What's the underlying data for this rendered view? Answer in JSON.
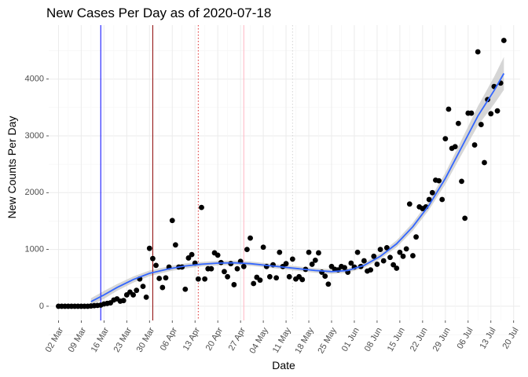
{
  "chart_data": {
    "type": "scatter",
    "title": "New Cases Per Day as of 2020-07-18",
    "xlabel": "Date",
    "ylabel": "New Counts Per Day",
    "xlim": [
      "2020-02-28",
      "2020-07-22"
    ],
    "ylim": [
      -250,
      4950
    ],
    "x_ticks": [
      "2020-03-02",
      "2020-03-09",
      "2020-03-16",
      "2020-03-23",
      "2020-03-30",
      "2020-04-06",
      "2020-04-13",
      "2020-04-20",
      "2020-04-27",
      "2020-05-04",
      "2020-05-11",
      "2020-05-18",
      "2020-05-25",
      "2020-06-01",
      "2020-06-08",
      "2020-06-15",
      "2020-06-22",
      "2020-06-29",
      "2020-07-06",
      "2020-07-13",
      "2020-07-20"
    ],
    "x_tick_labels": [
      "02 Mar",
      "09 Mar",
      "16 Mar",
      "23 Mar",
      "30 Mar",
      "06 Apr",
      "13 Apr",
      "20 Apr",
      "27 Apr",
      "04 May",
      "11 May",
      "18 May",
      "25 May",
      "01 Jun",
      "08 Jun",
      "15 Jun",
      "22 Jun",
      "29 Jun",
      "06 Jul",
      "13 Jul",
      "20 Jul"
    ],
    "y_ticks": [
      0,
      1000,
      2000,
      3000,
      4000
    ],
    "y_tick_labels": [
      "0",
      "1000",
      "2000",
      "3000",
      "4000"
    ],
    "grid": true,
    "legend": "none",
    "colors": {
      "points": "#000000",
      "smooth": "#3366ff",
      "ribbon": "#c8c8c8"
    },
    "vlines": [
      {
        "x": "2020-03-15",
        "color": "#0000ff",
        "style": "solid"
      },
      {
        "x": "2020-03-31",
        "color": "#8b0000",
        "style": "solid"
      },
      {
        "x": "2020-04-14",
        "color": "#e03030",
        "style": "dotted"
      },
      {
        "x": "2020-04-28",
        "color": "#ffb6c1",
        "style": "solid"
      },
      {
        "x": "2020-05-13",
        "color": "#d3d3d3",
        "style": "dotted"
      }
    ],
    "series": [
      {
        "values": [
          [
            "2020-03-02",
            0
          ],
          [
            "2020-03-03",
            0
          ],
          [
            "2020-03-04",
            0
          ],
          [
            "2020-03-05",
            0
          ],
          [
            "2020-03-06",
            0
          ],
          [
            "2020-03-07",
            0
          ],
          [
            "2020-03-08",
            0
          ],
          [
            "2020-03-09",
            0
          ],
          [
            "2020-03-10",
            0
          ],
          [
            "2020-03-11",
            0
          ],
          [
            "2020-03-12",
            5
          ],
          [
            "2020-03-13",
            10
          ],
          [
            "2020-03-14",
            15
          ],
          [
            "2020-03-15",
            20
          ],
          [
            "2020-03-16",
            40
          ],
          [
            "2020-03-17",
            50
          ],
          [
            "2020-03-18",
            60
          ],
          [
            "2020-03-19",
            110
          ],
          [
            "2020-03-20",
            130
          ],
          [
            "2020-03-21",
            90
          ],
          [
            "2020-03-22",
            100
          ],
          [
            "2020-03-23",
            200
          ],
          [
            "2020-03-24",
            250
          ],
          [
            "2020-03-25",
            200
          ],
          [
            "2020-03-26",
            280
          ],
          [
            "2020-03-27",
            480
          ],
          [
            "2020-03-28",
            350
          ],
          [
            "2020-03-29",
            160
          ],
          [
            "2020-03-30",
            1020
          ],
          [
            "2020-03-31",
            840
          ],
          [
            "2020-04-01",
            720
          ],
          [
            "2020-04-02",
            490
          ],
          [
            "2020-04-03",
            330
          ],
          [
            "2020-04-04",
            500
          ],
          [
            "2020-04-05",
            690
          ],
          [
            "2020-04-06",
            1510
          ],
          [
            "2020-04-07",
            1080
          ],
          [
            "2020-04-08",
            690
          ],
          [
            "2020-04-09",
            690
          ],
          [
            "2020-04-10",
            300
          ],
          [
            "2020-04-11",
            850
          ],
          [
            "2020-04-12",
            910
          ],
          [
            "2020-04-13",
            760
          ],
          [
            "2020-04-14",
            480
          ],
          [
            "2020-04-15",
            1740
          ],
          [
            "2020-04-16",
            480
          ],
          [
            "2020-04-17",
            660
          ],
          [
            "2020-04-18",
            660
          ],
          [
            "2020-04-19",
            940
          ],
          [
            "2020-04-20",
            900
          ],
          [
            "2020-04-21",
            770
          ],
          [
            "2020-04-22",
            610
          ],
          [
            "2020-04-23",
            520
          ],
          [
            "2020-04-24",
            750
          ],
          [
            "2020-04-25",
            380
          ],
          [
            "2020-04-26",
            660
          ],
          [
            "2020-04-27",
            790
          ],
          [
            "2020-04-28",
            700
          ],
          [
            "2020-04-29",
            1000
          ],
          [
            "2020-04-30",
            1200
          ],
          [
            "2020-05-01",
            400
          ],
          [
            "2020-05-02",
            510
          ],
          [
            "2020-05-03",
            460
          ],
          [
            "2020-05-04",
            1040
          ],
          [
            "2020-05-05",
            700
          ],
          [
            "2020-05-06",
            520
          ],
          [
            "2020-05-07",
            730
          ],
          [
            "2020-05-08",
            500
          ],
          [
            "2020-05-09",
            950
          ],
          [
            "2020-05-10",
            700
          ],
          [
            "2020-05-11",
            750
          ],
          [
            "2020-05-12",
            520
          ],
          [
            "2020-05-13",
            830
          ],
          [
            "2020-05-14",
            480
          ],
          [
            "2020-05-15",
            520
          ],
          [
            "2020-05-16",
            470
          ],
          [
            "2020-05-17",
            650
          ],
          [
            "2020-05-18",
            950
          ],
          [
            "2020-05-19",
            740
          ],
          [
            "2020-05-20",
            810
          ],
          [
            "2020-05-21",
            940
          ],
          [
            "2020-05-22",
            600
          ],
          [
            "2020-05-23",
            530
          ],
          [
            "2020-05-24",
            390
          ],
          [
            "2020-05-25",
            700
          ],
          [
            "2020-05-26",
            650
          ],
          [
            "2020-05-27",
            640
          ],
          [
            "2020-05-28",
            700
          ],
          [
            "2020-05-29",
            680
          ],
          [
            "2020-05-30",
            600
          ],
          [
            "2020-05-31",
            760
          ],
          [
            "2020-06-01",
            690
          ],
          [
            "2020-06-02",
            950
          ],
          [
            "2020-06-03",
            700
          ],
          [
            "2020-06-04",
            800
          ],
          [
            "2020-06-05",
            620
          ],
          [
            "2020-06-06",
            640
          ],
          [
            "2020-06-07",
            880
          ],
          [
            "2020-06-08",
            740
          ],
          [
            "2020-06-09",
            1000
          ],
          [
            "2020-06-10",
            800
          ],
          [
            "2020-06-11",
            1030
          ],
          [
            "2020-06-12",
            860
          ],
          [
            "2020-06-13",
            730
          ],
          [
            "2020-06-14",
            670
          ],
          [
            "2020-06-15",
            950
          ],
          [
            "2020-06-16",
            880
          ],
          [
            "2020-06-17",
            1010
          ],
          [
            "2020-06-18",
            1800
          ],
          [
            "2020-06-19",
            890
          ],
          [
            "2020-06-20",
            1220
          ],
          [
            "2020-06-21",
            1750
          ],
          [
            "2020-06-22",
            1720
          ],
          [
            "2020-06-23",
            1750
          ],
          [
            "2020-06-24",
            1880
          ],
          [
            "2020-06-25",
            2000
          ],
          [
            "2020-06-26",
            2220
          ],
          [
            "2020-06-27",
            2210
          ],
          [
            "2020-06-28",
            1880
          ],
          [
            "2020-06-29",
            2950
          ],
          [
            "2020-06-30",
            3470
          ],
          [
            "2020-07-01",
            2780
          ],
          [
            "2020-07-02",
            2810
          ],
          [
            "2020-07-03",
            3220
          ],
          [
            "2020-07-04",
            2200
          ],
          [
            "2020-07-05",
            1550
          ],
          [
            "2020-07-06",
            3400
          ],
          [
            "2020-07-07",
            3400
          ],
          [
            "2020-07-08",
            2840
          ],
          [
            "2020-07-09",
            4480
          ],
          [
            "2020-07-10",
            3200
          ],
          [
            "2020-07-11",
            2530
          ],
          [
            "2020-07-12",
            3640
          ],
          [
            "2020-07-13",
            3390
          ],
          [
            "2020-07-14",
            3870
          ],
          [
            "2020-07-15",
            3440
          ],
          [
            "2020-07-16",
            3930
          ],
          [
            "2020-07-17",
            4680
          ]
        ]
      }
    ],
    "smooth": [
      [
        "2020-03-12",
        80,
        20,
        140
      ],
      [
        "2020-03-16",
        200,
        130,
        270
      ],
      [
        "2020-03-20",
        330,
        270,
        390
      ],
      [
        "2020-03-25",
        470,
        415,
        525
      ],
      [
        "2020-03-30",
        580,
        530,
        630
      ],
      [
        "2020-04-05",
        660,
        615,
        705
      ],
      [
        "2020-04-10",
        710,
        665,
        755
      ],
      [
        "2020-04-15",
        740,
        700,
        780
      ],
      [
        "2020-04-20",
        760,
        720,
        800
      ],
      [
        "2020-04-25",
        765,
        725,
        805
      ],
      [
        "2020-04-30",
        750,
        712,
        788
      ],
      [
        "2020-05-05",
        720,
        682,
        758
      ],
      [
        "2020-05-10",
        690,
        652,
        728
      ],
      [
        "2020-05-15",
        660,
        620,
        700
      ],
      [
        "2020-05-20",
        630,
        590,
        670
      ],
      [
        "2020-05-25",
        610,
        570,
        650
      ],
      [
        "2020-05-30",
        630,
        590,
        670
      ],
      [
        "2020-06-04",
        720,
        675,
        765
      ],
      [
        "2020-06-09",
        880,
        830,
        930
      ],
      [
        "2020-06-14",
        1100,
        1040,
        1160
      ],
      [
        "2020-06-19",
        1400,
        1330,
        1470
      ],
      [
        "2020-06-24",
        1780,
        1700,
        1860
      ],
      [
        "2020-06-29",
        2250,
        2150,
        2350
      ],
      [
        "2020-07-04",
        2800,
        2670,
        2930
      ],
      [
        "2020-07-09",
        3350,
        3180,
        3520
      ],
      [
        "2020-07-14",
        3800,
        3560,
        4040
      ],
      [
        "2020-07-17",
        4100,
        3810,
        4390
      ]
    ]
  }
}
